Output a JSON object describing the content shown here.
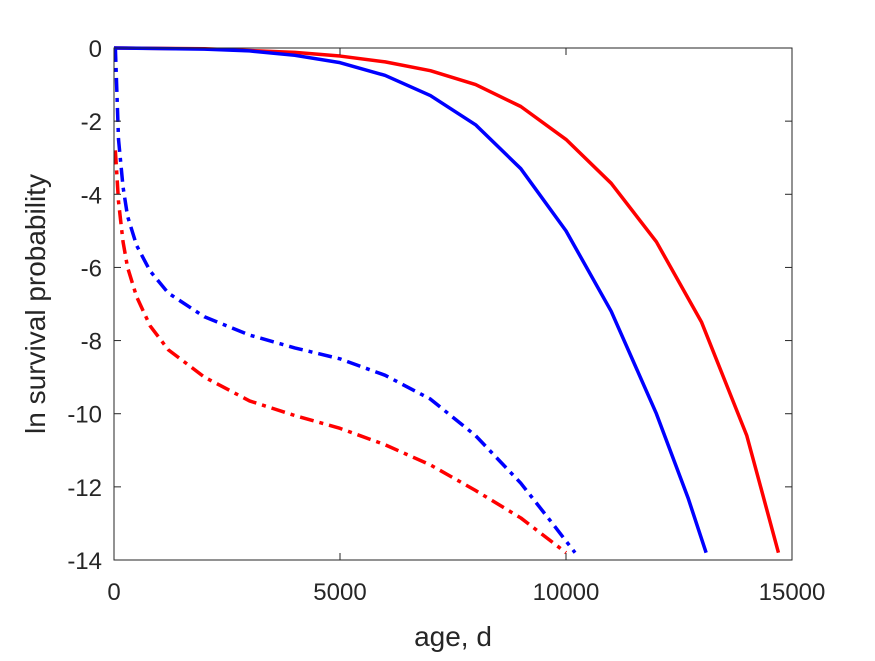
{
  "chart_data": {
    "type": "line",
    "title": "",
    "xlabel": "age, d",
    "ylabel": "ln survival probability",
    "xlim": [
      0,
      15000
    ],
    "ylim": [
      -14,
      0
    ],
    "xticks": [
      0,
      5000,
      10000,
      15000
    ],
    "yticks": [
      0,
      -2,
      -4,
      -6,
      -8,
      -10,
      -12,
      -14
    ],
    "x_tick_labels": [
      "0",
      "5000",
      "10000",
      "15000"
    ],
    "y_tick_labels": [
      "0",
      "-2",
      "-4",
      "-6",
      "-8",
      "-10",
      "-12",
      "-14"
    ],
    "grid": false,
    "legend": "none",
    "series": [
      {
        "color": "#ff0000",
        "style": "solid",
        "points": [
          [
            0,
            0
          ],
          [
            2000,
            -0.02
          ],
          [
            4000,
            -0.12
          ],
          [
            5000,
            -0.22
          ],
          [
            6000,
            -0.38
          ],
          [
            7000,
            -0.62
          ],
          [
            8000,
            -1.0
          ],
          [
            9000,
            -1.6
          ],
          [
            10000,
            -2.5
          ],
          [
            11000,
            -3.7
          ],
          [
            12000,
            -5.3
          ],
          [
            13000,
            -7.5
          ],
          [
            14000,
            -10.6
          ],
          [
            14700,
            -13.8
          ]
        ]
      },
      {
        "color": "#0000ff",
        "style": "solid",
        "points": [
          [
            0,
            0
          ],
          [
            2000,
            -0.03
          ],
          [
            3000,
            -0.08
          ],
          [
            4000,
            -0.2
          ],
          [
            5000,
            -0.4
          ],
          [
            6000,
            -0.75
          ],
          [
            7000,
            -1.3
          ],
          [
            8000,
            -2.1
          ],
          [
            9000,
            -3.3
          ],
          [
            10000,
            -5.0
          ],
          [
            11000,
            -7.2
          ],
          [
            12000,
            -10.0
          ],
          [
            12700,
            -12.3
          ],
          [
            13100,
            -13.8
          ]
        ]
      },
      {
        "color": "#0000ff",
        "style": "dashdot",
        "points": [
          [
            30,
            0
          ],
          [
            100,
            -2.5
          ],
          [
            200,
            -3.8
          ],
          [
            300,
            -4.6
          ],
          [
            500,
            -5.4
          ],
          [
            800,
            -6.1
          ],
          [
            1200,
            -6.7
          ],
          [
            2000,
            -7.35
          ],
          [
            3000,
            -7.85
          ],
          [
            4000,
            -8.2
          ],
          [
            5000,
            -8.5
          ],
          [
            6000,
            -8.95
          ],
          [
            7000,
            -9.6
          ],
          [
            8000,
            -10.6
          ],
          [
            9000,
            -11.9
          ],
          [
            9700,
            -13.0
          ],
          [
            10200,
            -13.8
          ]
        ]
      },
      {
        "color": "#ff0000",
        "style": "dashdot",
        "points": [
          [
            30,
            -2.8
          ],
          [
            100,
            -4.2
          ],
          [
            200,
            -5.3
          ],
          [
            300,
            -6.0
          ],
          [
            500,
            -6.8
          ],
          [
            800,
            -7.6
          ],
          [
            1200,
            -8.25
          ],
          [
            2000,
            -9.0
          ],
          [
            3000,
            -9.65
          ],
          [
            4000,
            -10.05
          ],
          [
            5000,
            -10.4
          ],
          [
            6000,
            -10.85
          ],
          [
            7000,
            -11.4
          ],
          [
            8000,
            -12.1
          ],
          [
            9000,
            -12.85
          ],
          [
            10000,
            -13.8
          ]
        ]
      }
    ]
  }
}
